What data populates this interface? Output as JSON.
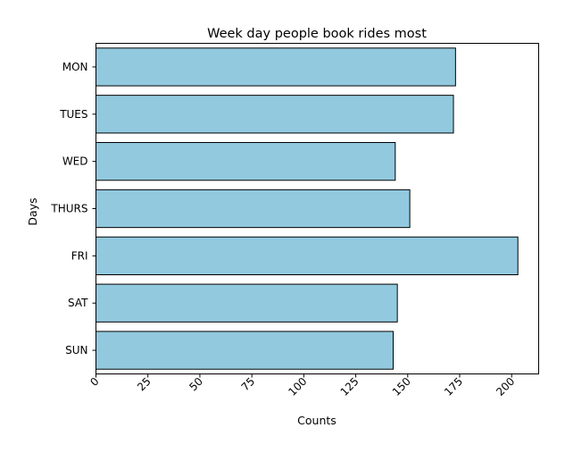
{
  "chart_data": {
    "type": "bar",
    "orientation": "horizontal",
    "title": "Week day people book rides most",
    "xlabel": "Counts",
    "ylabel": "Days",
    "categories": [
      "MON",
      "TUES",
      "WED",
      "THURS",
      "FRI",
      "SAT",
      "SUN"
    ],
    "values": [
      173,
      172,
      144,
      151,
      203,
      145,
      143
    ],
    "xlim": [
      0,
      213
    ],
    "xticks": [
      0,
      25,
      50,
      75,
      100,
      125,
      150,
      175,
      200
    ],
    "xtick_rotation": 45,
    "grid": false,
    "bar_color": "#92c9df",
    "edge_color": "#000000"
  }
}
